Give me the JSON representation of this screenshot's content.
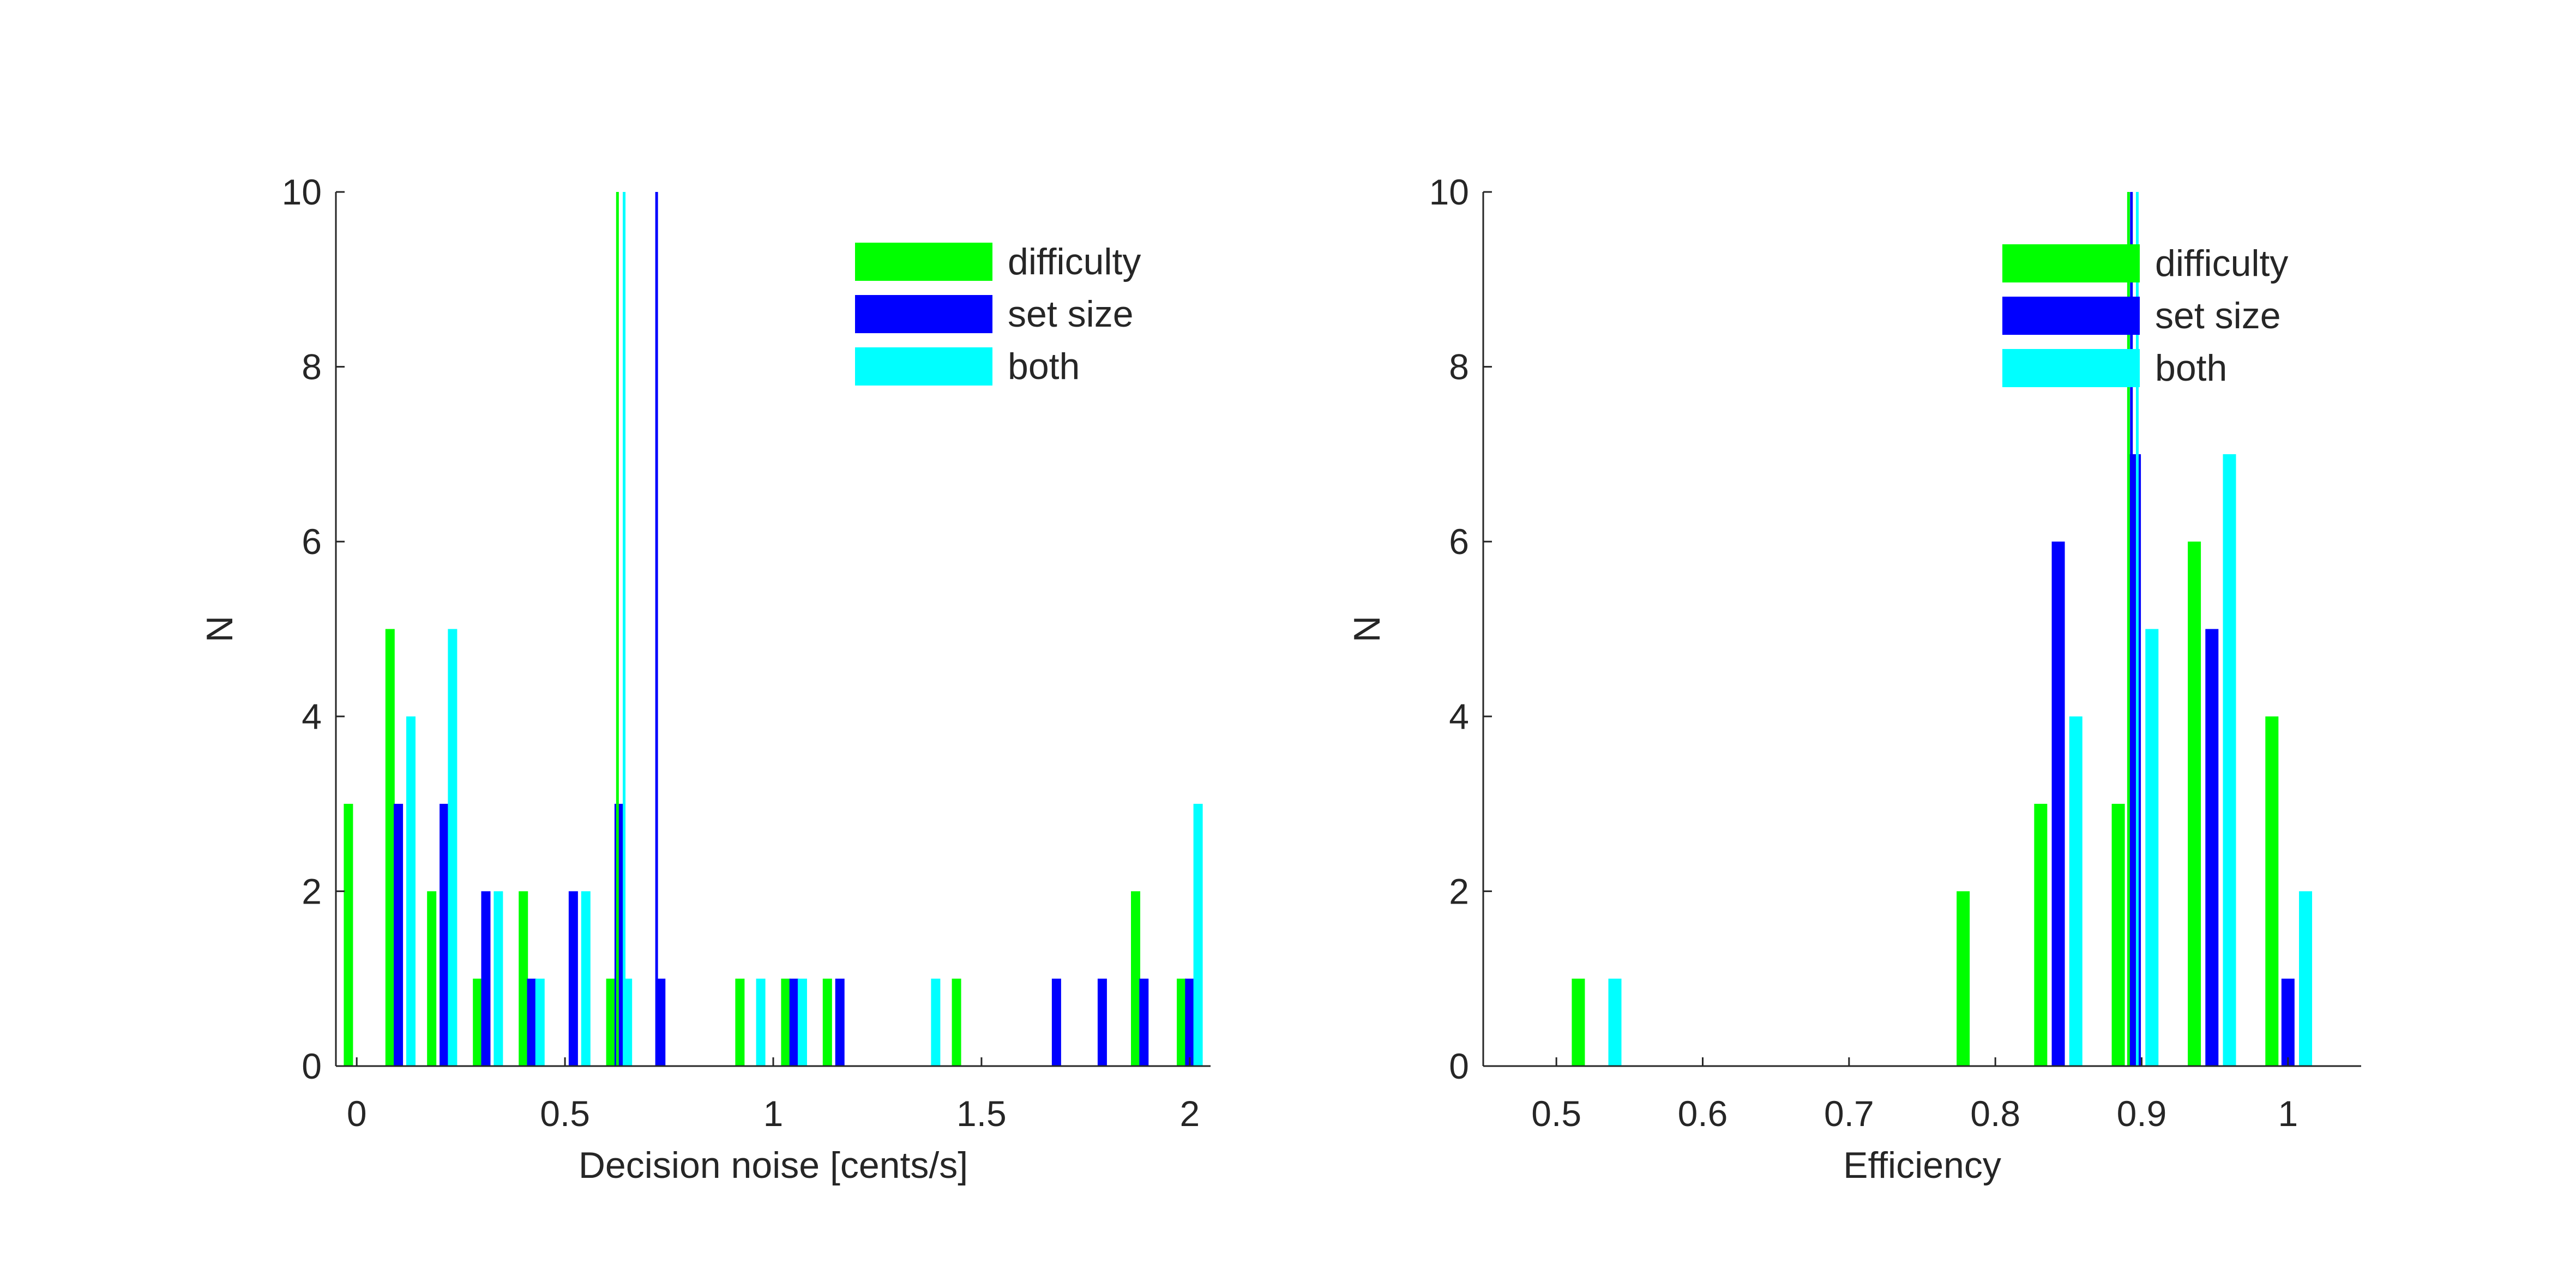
{
  "colors": {
    "difficulty": "#00ff00",
    "set_size": "#0000ff",
    "both": "#00ffff",
    "axis": "#262626"
  },
  "chart_data": [
    {
      "type": "bar",
      "xlabel": "Decision noise [cents/s]",
      "ylabel": "N",
      "xlim": [
        -0.05,
        2.05
      ],
      "ylim": [
        0,
        10
      ],
      "xticks": [
        0,
        0.5,
        1,
        1.5,
        2
      ],
      "xtick_labels": [
        "0",
        "0.5",
        "1",
        "1.5",
        "2"
      ],
      "yticks": [
        0,
        2,
        4,
        6,
        8,
        10
      ],
      "ytick_labels": [
        "0",
        "2",
        "4",
        "6",
        "8",
        "10"
      ],
      "grid": false,
      "legend_position": "top-right",
      "legend": [
        "difficulty",
        "set size",
        "both"
      ],
      "series": [
        {
          "name": "difficulty",
          "color": "#00ff00",
          "x": [
            -0.02,
            0.08,
            0.18,
            0.29,
            0.4,
            0.61,
            0.92,
            1.03,
            1.13,
            1.44,
            1.87,
            1.98
          ],
          "values": [
            3,
            5,
            2,
            1,
            2,
            1,
            1,
            1,
            1,
            1,
            2,
            1
          ]
        },
        {
          "name": "set size",
          "color": "#0000ff",
          "x": [
            0.1,
            0.21,
            0.31,
            0.42,
            0.52,
            0.63,
            0.73,
            1.05,
            1.16,
            1.68,
            1.79,
            1.89,
            2.0
          ],
          "values": [
            3,
            3,
            2,
            1,
            2,
            3,
            1,
            1,
            1,
            1,
            1,
            1,
            1
          ]
        },
        {
          "name": "both",
          "color": "#00ffff",
          "x": [
            0.13,
            0.23,
            0.34,
            0.44,
            0.55,
            0.65,
            0.97,
            1.07,
            1.39,
            2.02
          ],
          "values": [
            4,
            5,
            2,
            1,
            2,
            1,
            1,
            1,
            1,
            3
          ]
        }
      ],
      "reference_lines": [
        {
          "series": "difficulty",
          "x": 0.626
        },
        {
          "series": "both",
          "x": 0.642
        },
        {
          "series": "set size",
          "x": 0.72
        }
      ]
    },
    {
      "type": "bar",
      "xlabel": "Efficiency",
      "ylabel": "N",
      "xlim": [
        0.45,
        1.05
      ],
      "ylim": [
        0,
        10
      ],
      "xticks": [
        0.5,
        0.6,
        0.7,
        0.8,
        0.9,
        1
      ],
      "xtick_labels": [
        "0.5",
        "0.6",
        "0.7",
        "0.8",
        "0.9",
        "1"
      ],
      "yticks": [
        0,
        2,
        4,
        6,
        8,
        10
      ],
      "ytick_labels": [
        "0",
        "2",
        "4",
        "6",
        "8",
        "10"
      ],
      "grid": false,
      "legend_position": "top-right",
      "legend": [
        "difficulty",
        "set size",
        "both"
      ],
      "series": [
        {
          "name": "difficulty",
          "color": "#00ff00",
          "x": [
            0.515,
            0.778,
            0.831,
            0.884,
            0.936,
            0.989
          ],
          "values": [
            1,
            2,
            3,
            3,
            6,
            4
          ]
        },
        {
          "name": "set size",
          "color": "#0000ff",
          "x": [
            0.843,
            0.895,
            0.948,
            1.0
          ],
          "values": [
            6,
            7,
            5,
            1
          ]
        },
        {
          "name": "both",
          "color": "#00ffff",
          "x": [
            0.54,
            0.855,
            0.907,
            0.96,
            1.012
          ],
          "values": [
            1,
            4,
            5,
            7,
            2
          ]
        }
      ],
      "reference_lines": [
        {
          "series": "difficulty",
          "x": 0.891
        },
        {
          "series": "set size",
          "x": 0.893
        },
        {
          "series": "both",
          "x": 0.897
        }
      ]
    }
  ]
}
